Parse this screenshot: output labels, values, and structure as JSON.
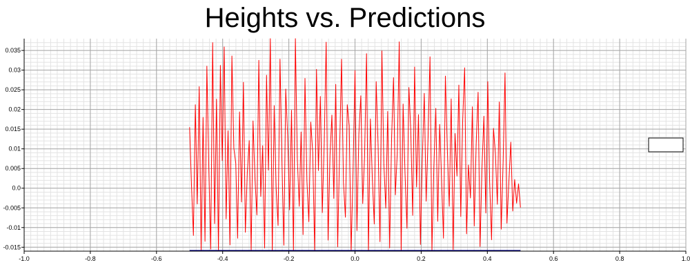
{
  "chart_data": {
    "type": "line",
    "title": "Heights vs. Predictions",
    "xlabel": "",
    "ylabel": "",
    "xlim": [
      -1.0,
      1.0
    ],
    "ylim": [
      -0.016,
      0.038
    ],
    "x_ticks": [
      "-1.0",
      "-0.8",
      "-0.6",
      "-0.4",
      "-0.2",
      "0.0",
      "0.2",
      "0.4",
      "0.6",
      "0.8",
      "1.0"
    ],
    "x_tick_values": [
      -1.0,
      -0.8,
      -0.6,
      -0.4,
      -0.2,
      0.0,
      0.2,
      0.4,
      0.6,
      0.8,
      1.0
    ],
    "y_ticks": [
      "-0.015",
      "-0.01",
      "-0.005",
      "0.0",
      "0.005",
      "0.01",
      "0.015",
      "0.02",
      "0.025",
      "0.03",
      "0.035"
    ],
    "y_tick_values": [
      -0.015,
      -0.01,
      -0.005,
      0.0,
      0.005,
      0.01,
      0.015,
      0.02,
      0.025,
      0.03,
      0.035
    ],
    "grid": "on (major and minor)",
    "legend": "right, empty box",
    "series": [
      {
        "color": "#ff0000",
        "x_range": [
          -0.5,
          0.5
        ],
        "values": [
          0.0155,
          0.0008,
          -0.012,
          0.0212,
          -0.004,
          0.0258,
          -0.016,
          0.018,
          -0.0135,
          0.031,
          0.0052,
          -0.0155,
          0.037,
          -0.009,
          0.0226,
          -0.0163,
          0.0312,
          0.007,
          0.0359,
          -0.0078,
          0.0146,
          -0.0144,
          0.0336,
          0.0102,
          0.0063,
          -0.0127,
          0.0194,
          -0.0035,
          0.0269,
          -0.0112,
          0.0039,
          0.0121,
          -0.0158,
          0.0171,
          0.0024,
          -0.0068,
          0.0325,
          -0.0021,
          0.0108,
          -0.0152,
          0.0287,
          0.0046,
          0.0381,
          -0.0164,
          0.021,
          0.0,
          -0.0095,
          0.0328,
          0.0067,
          -0.0145,
          0.0252,
          0.0132,
          -0.0055,
          0.0198,
          -0.0162,
          0.0389,
          0.0076,
          -0.0046,
          0.0143,
          -0.0118,
          0.0279,
          0.0019,
          -0.0085,
          0.0168,
          0.0091,
          -0.0159,
          0.0302,
          0.0045,
          0.0233,
          -0.0062,
          0.0115,
          0.0371,
          -0.0132,
          0.0084,
          0.0186,
          -0.0026,
          0.0264,
          -0.0149,
          0.0097,
          0.0328,
          0.0014,
          -0.0074,
          0.0212,
          0.0159,
          -0.0163,
          0.0046,
          0.0299,
          -0.0108,
          0.0138,
          0.0235,
          -0.0039,
          0.0083,
          0.0342,
          -0.0159,
          0.0176,
          0.0025,
          -0.0091,
          0.0271,
          0.0107,
          -0.0136,
          0.0349,
          0.0062,
          -0.0051,
          0.0195,
          -0.0152,
          0.0125,
          0.0281,
          -0.0017,
          0.0092,
          0.0372,
          -0.0162,
          0.0214,
          0.0037,
          -0.0102,
          0.0256,
          0.0148,
          -0.0069,
          0.0308,
          0.0003,
          0.0187,
          -0.0143,
          0.0077,
          0.0241,
          -0.0033,
          0.0128,
          0.0334,
          -0.0158,
          0.0055,
          0.0203,
          -0.0084,
          0.0162,
          0.0022,
          -0.0127,
          0.0285,
          0.0099,
          -0.0046,
          0.0227,
          -0.0156,
          0.0139,
          0.0031,
          0.0262,
          -0.0072,
          0.0175,
          0.0306,
          -0.0116,
          0.0059,
          -0.0025,
          0.0207,
          -0.0096,
          0.0112,
          0.0244,
          -0.0148,
          0.0049,
          0.0183,
          -0.0063,
          0.0271,
          0.0017,
          -0.0131,
          0.0152,
          0.0088,
          -0.0041,
          0.0219,
          -0.0104,
          0.0068,
          0.0293,
          -0.0089,
          0.0016,
          0.0117,
          -0.0058,
          0.0022,
          -0.0038,
          0.0011,
          -0.0049
        ]
      },
      {
        "color": "#000080",
        "x_range": [
          -0.5,
          0.5
        ],
        "values": [
          -0.0159,
          -0.0159
        ]
      }
    ]
  }
}
